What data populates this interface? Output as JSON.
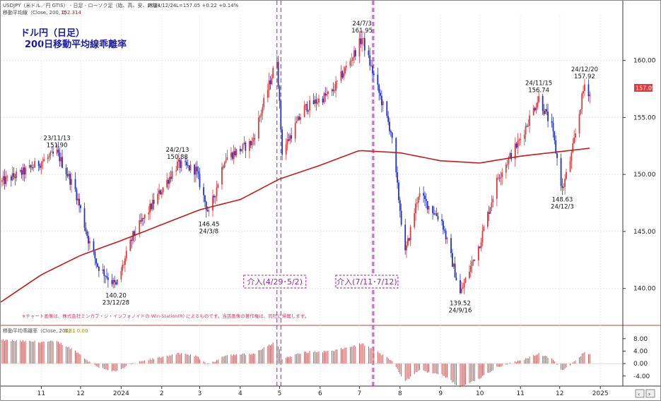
{
  "header": {
    "symbol_line": "USDJPY（米ドル／円 GTIS） - 日足 - ローソク足（始、高、安、終値）",
    "date": "2024/12/24",
    "quote": "L=157.05  +0.22  +0.14%",
    "ma_label": "移動平均線（Close, 200, 0）",
    "ma_value": "152.314"
  },
  "chart_data": {
    "type": "candlestick",
    "title": "ドル円（日足）",
    "subtitle": "200日移動平均線乖離率",
    "ylim": [
      138,
      164
    ],
    "yticks": [
      "140.00",
      "145.00",
      "150.00",
      "155.00",
      "160.00"
    ],
    "ytick_values": [
      140,
      145,
      150,
      155,
      160
    ],
    "xticks": [
      "11",
      "12",
      "2024",
      "2",
      "3",
      "4",
      "5",
      "6",
      "7",
      "8",
      "9",
      "10",
      "11",
      "12",
      "2025"
    ],
    "price_path": [
      [
        "2023-10-01",
        149.3
      ],
      [
        "2023-10-20",
        150.3
      ],
      [
        "2023-11-13",
        151.9
      ],
      [
        "2023-11-27",
        148.6
      ],
      [
        "2023-12-07",
        144.3
      ],
      [
        "2023-12-14",
        142.0
      ],
      [
        "2023-12-28",
        140.2
      ],
      [
        "2024-01-10",
        144.6
      ],
      [
        "2024-01-25",
        147.4
      ],
      [
        "2024-02-13",
        150.88
      ],
      [
        "2024-02-27",
        150.4
      ],
      [
        "2024-03-08",
        146.45
      ],
      [
        "2024-03-20",
        151.4
      ],
      [
        "2024-04-10",
        152.8
      ],
      [
        "2024-04-29",
        160.2
      ],
      [
        "2024-05-03",
        152.0
      ],
      [
        "2024-05-20",
        155.8
      ],
      [
        "2024-06-10",
        157.2
      ],
      [
        "2024-06-28",
        160.8
      ],
      [
        "2024-07-03",
        161.95
      ],
      [
        "2024-07-11",
        159.0
      ],
      [
        "2024-07-25",
        153.8
      ],
      [
        "2024-08-05",
        143.0
      ],
      [
        "2024-08-15",
        148.3
      ],
      [
        "2024-09-02",
        145.9
      ],
      [
        "2024-09-16",
        139.52
      ],
      [
        "2024-10-01",
        144.0
      ],
      [
        "2024-10-15",
        149.8
      ],
      [
        "2024-10-31",
        152.9
      ],
      [
        "2024-11-15",
        156.74
      ],
      [
        "2024-11-25",
        154.1
      ],
      [
        "2024-12-03",
        148.63
      ],
      [
        "2024-12-10",
        151.7
      ],
      [
        "2024-12-20",
        157.92
      ],
      [
        "2024-12-24",
        157.05
      ]
    ],
    "ma200": [
      [
        "2023-10-01",
        138.8
      ],
      [
        "2023-11-01",
        141.2
      ],
      [
        "2023-12-01",
        142.9
      ],
      [
        "2024-01-01",
        144.2
      ],
      [
        "2024-02-01",
        145.6
      ],
      [
        "2024-03-01",
        146.9
      ],
      [
        "2024-04-01",
        147.8
      ],
      [
        "2024-05-01",
        149.6
      ],
      [
        "2024-06-01",
        150.8
      ],
      [
        "2024-07-01",
        152.1
      ],
      [
        "2024-08-01",
        151.9
      ],
      [
        "2024-09-01",
        151.2
      ],
      [
        "2024-10-01",
        151.0
      ],
      [
        "2024-11-01",
        151.6
      ],
      [
        "2024-12-01",
        152.0
      ],
      [
        "2024-12-24",
        152.3
      ]
    ],
    "annotations": [
      {
        "text": "23/11/13",
        "value": "151.90",
        "date": "2023-11-13",
        "price": 151.9,
        "pos": "above"
      },
      {
        "text": "23/12/28",
        "value": "140.20",
        "date": "2023-12-28",
        "price": 140.2,
        "pos": "below"
      },
      {
        "text": "24/2/13",
        "value": "150.88",
        "date": "2024-02-13",
        "price": 150.88,
        "pos": "above"
      },
      {
        "text": "24/3/8",
        "value": "146.45",
        "date": "2024-03-08",
        "price": 146.45,
        "pos": "below"
      },
      {
        "text": "24/7/3",
        "value": "161.95",
        "date": "2024-07-03",
        "price": 161.95,
        "pos": "above"
      },
      {
        "text": "24/9/16",
        "value": "139.52",
        "date": "2024-09-16",
        "price": 139.52,
        "pos": "below"
      },
      {
        "text": "24/11/15",
        "value": "156.74",
        "date": "2024-11-15",
        "price": 156.74,
        "pos": "above"
      },
      {
        "text": "24/12/3",
        "value": "148.63",
        "date": "2024-12-03",
        "price": 148.63,
        "pos": "below"
      },
      {
        "text": "24/12/20",
        "value": "157.92",
        "date": "2024-12-20",
        "price": 157.92,
        "pos": "above"
      }
    ],
    "interventions": [
      {
        "label": "介入(4/29･5/2)",
        "dates": [
          "2024-04-29",
          "2024-05-02"
        ]
      },
      {
        "label": "介入(7/11･7/12)",
        "dates": [
          "2024-07-11",
          "2024-07-12"
        ]
      }
    ],
    "last_price_label": "157.05",
    "note": "※チャート画像は、株式会社ミンカブ・ジ・インフォノイドの Win-Station(R) によるものです。当該画像の著作権は、同社に帰属します。",
    "deviation": {
      "label": "移動平均乖離率（Close, 200）",
      "value": "3.31  0.00",
      "yticks": [
        "8.00",
        "4.00",
        "0.00",
        "-4.00"
      ],
      "ytick_values": [
        8,
        4,
        0,
        -4
      ]
    },
    "colors": {
      "up": "#e03a3a",
      "down": "#2233cc",
      "ma": "#c41a1a",
      "intervention": "#a020a0",
      "deviation": "#c84848"
    }
  }
}
